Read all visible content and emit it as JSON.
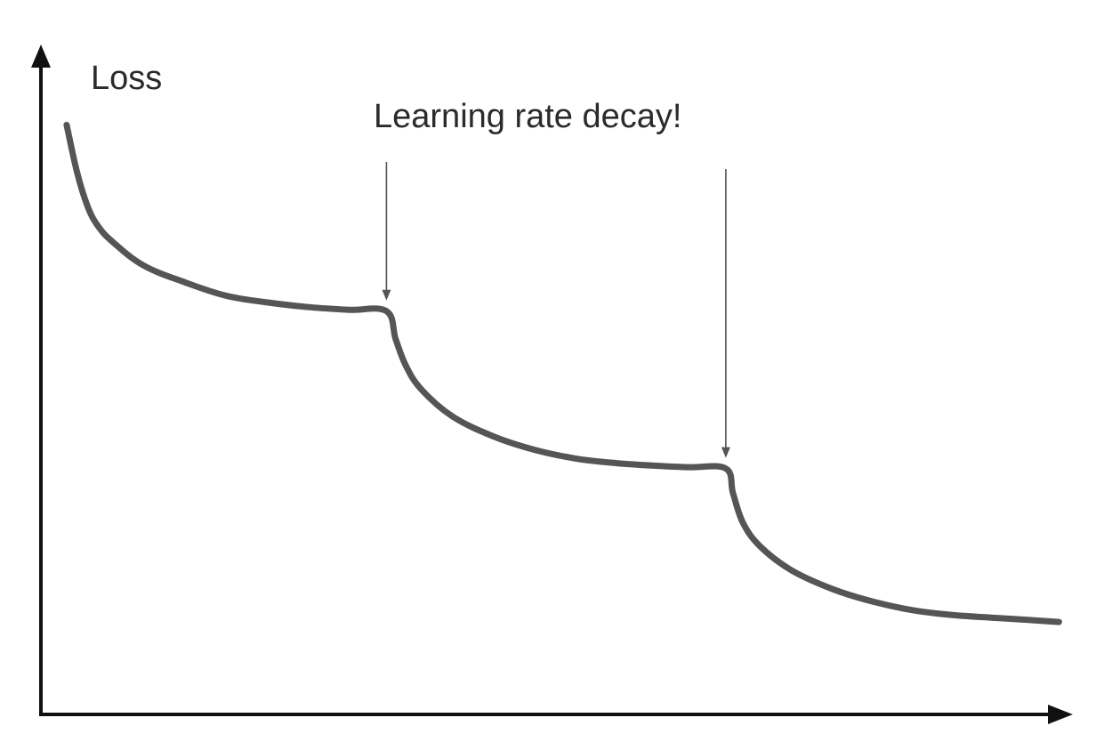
{
  "chart_data": {
    "type": "line",
    "title": "",
    "xlabel": "",
    "ylabel": "Loss",
    "grid": false,
    "xlim": [
      0,
      100
    ],
    "ylim": [
      0,
      100
    ],
    "annotations": [
      {
        "text": "Learning rate decay!",
        "targets_x": [
          33.6,
          66.6
        ]
      }
    ],
    "series": [
      {
        "x": [
          2.5,
          3.5,
          4.5,
          5.5,
          7,
          10,
          14,
          18,
          22,
          26,
          30,
          33.6,
          34.5,
          35.5,
          37,
          40,
          44,
          48,
          52,
          56,
          60,
          63,
          66.6,
          67.3,
          68.3,
          70,
          73,
          77,
          81,
          85,
          89,
          93,
          96,
          99
        ],
        "values": [
          88,
          81,
          76,
          73,
          70.5,
          67,
          64.5,
          62.5,
          61.5,
          60.8,
          60.4,
          60.2,
          56,
          52,
          48.5,
          44.5,
          41.5,
          39.5,
          38.2,
          37.5,
          37.1,
          36.9,
          36.7,
          33,
          28.5,
          25,
          21.5,
          18.7,
          16.8,
          15.5,
          14.8,
          14.4,
          14.1,
          13.8
        ]
      }
    ]
  }
}
